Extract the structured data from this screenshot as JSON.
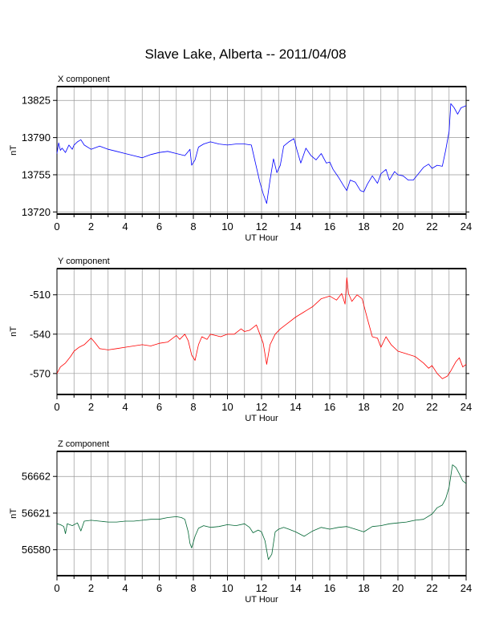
{
  "title": "Slave Lake, Alberta -- 2011/04/08",
  "chart_data": [
    {
      "type": "line",
      "title": "X component",
      "xlabel": "UT Hour",
      "ylabel": "nT",
      "xlim": [
        0,
        24
      ],
      "ylim": [
        13718,
        13838
      ],
      "yticks": [
        13720,
        13755,
        13790,
        13825
      ],
      "xticks": [
        0,
        2,
        4,
        6,
        8,
        10,
        12,
        14,
        16,
        18,
        20,
        22,
        24
      ],
      "color": "#0000ff",
      "grid": true,
      "series": [
        {
          "x": [
            0,
            0.1,
            0.2,
            0.3,
            0.5,
            0.7,
            0.9,
            1.0,
            1.2,
            1.4,
            1.6,
            2.0,
            2.5,
            3.0,
            3.5,
            4.0,
            4.5,
            5.0,
            5.5,
            6.0,
            6.5,
            7.0,
            7.5,
            7.8,
            7.9,
            8.1,
            8.3,
            8.6,
            9.0,
            9.5,
            10.0,
            10.5,
            11.0,
            11.4,
            11.6,
            11.9,
            12.1,
            12.3,
            12.5,
            12.7,
            12.9,
            13.1,
            13.3,
            13.6,
            13.9,
            14.1,
            14.3,
            14.6,
            14.9,
            15.2,
            15.5,
            15.8,
            16.0,
            16.2,
            16.5,
            16.8,
            17.0,
            17.2,
            17.5,
            17.8,
            18.0,
            18.2,
            18.5,
            18.8,
            19.0,
            19.3,
            19.5,
            19.8,
            20.0,
            20.3,
            20.6,
            20.9,
            21.2,
            21.5,
            21.8,
            22.0,
            22.3,
            22.6,
            22.8,
            23.0,
            23.1,
            23.3,
            23.5,
            23.7,
            24.0
          ],
          "y": [
            13775,
            13785,
            13778,
            13780,
            13776,
            13783,
            13779,
            13783,
            13786,
            13788,
            13783,
            13779,
            13782,
            13779,
            13777,
            13775,
            13773,
            13771,
            13774,
            13776,
            13777,
            13775,
            13773,
            13779,
            13764,
            13769,
            13781,
            13784,
            13786,
            13784,
            13783,
            13784,
            13784,
            13783,
            13769,
            13748,
            13737,
            13728,
            13750,
            13770,
            13757,
            13764,
            13782,
            13786,
            13789,
            13777,
            13766,
            13780,
            13773,
            13769,
            13775,
            13766,
            13767,
            13760,
            13753,
            13745,
            13740,
            13750,
            13748,
            13740,
            13739,
            13746,
            13754,
            13747,
            13756,
            13760,
            13750,
            13758,
            13755,
            13754,
            13750,
            13750,
            13756,
            13762,
            13765,
            13761,
            13764,
            13763,
            13778,
            13796,
            13822,
            13818,
            13812,
            13818,
            13820
          ]
        }
      ]
    },
    {
      "type": "line",
      "title": "Y component",
      "xlabel": "UT Hour",
      "ylabel": "nT",
      "xlim": [
        0,
        24
      ],
      "ylim": [
        -586,
        -490
      ],
      "yticks": [
        -570,
        -540,
        -510
      ],
      "xticks": [
        0,
        2,
        4,
        6,
        8,
        10,
        12,
        14,
        16,
        18,
        20,
        22,
        24
      ],
      "color": "#ff0000",
      "grid": true,
      "series": [
        {
          "x": [
            0,
            0.2,
            0.5,
            0.8,
            1.0,
            1.3,
            1.6,
            2.0,
            2.2,
            2.5,
            3.0,
            3.5,
            4.0,
            4.5,
            5.0,
            5.5,
            6.0,
            6.5,
            6.8,
            7.0,
            7.2,
            7.5,
            7.7,
            7.9,
            8.1,
            8.3,
            8.5,
            8.8,
            9.0,
            9.3,
            9.6,
            10.0,
            10.4,
            10.8,
            11.0,
            11.3,
            11.5,
            11.7,
            11.9,
            12.1,
            12.3,
            12.5,
            12.8,
            13.1,
            13.5,
            14.0,
            14.5,
            15.0,
            15.5,
            16.0,
            16.4,
            16.7,
            16.9,
            17.0,
            17.1,
            17.3,
            17.6,
            17.9,
            18.2,
            18.5,
            18.8,
            19.0,
            19.3,
            19.6,
            20.0,
            20.5,
            21.0,
            21.5,
            21.8,
            22.0,
            22.3,
            22.6,
            22.9,
            23.1,
            23.4,
            23.6,
            23.8,
            24.0
          ],
          "y": [
            -570,
            -565,
            -562,
            -557,
            -553,
            -550,
            -548,
            -543,
            -546,
            -551,
            -552,
            -551,
            -550,
            -549,
            -548,
            -549,
            -547,
            -546,
            -543,
            -541,
            -544,
            -540,
            -545,
            -556,
            -560,
            -548,
            -542,
            -544,
            -540,
            -541,
            -542,
            -540,
            -540,
            -536,
            -538,
            -537,
            -535,
            -533,
            -540,
            -547,
            -563,
            -548,
            -540,
            -536,
            -532,
            -527,
            -523,
            -519,
            -513,
            -511,
            -514,
            -509,
            -517,
            -497,
            -509,
            -515,
            -510,
            -513,
            -528,
            -542,
            -543,
            -550,
            -542,
            -548,
            -553,
            -555,
            -557,
            -562,
            -566,
            -564,
            -570,
            -574,
            -572,
            -568,
            -561,
            -558,
            -565,
            -563
          ]
        }
      ]
    },
    {
      "type": "line",
      "title": "Z component",
      "xlabel": "UT Hour",
      "ylabel": "nT",
      "xlim": [
        0,
        24
      ],
      "ylim": [
        56551,
        56690
      ],
      "yticks": [
        56580,
        56621,
        56662
      ],
      "xticks": [
        0,
        2,
        4,
        6,
        8,
        10,
        12,
        14,
        16,
        18,
        20,
        22,
        24
      ],
      "color": "#006633",
      "grid": true,
      "series": [
        {
          "x": [
            0,
            0.2,
            0.4,
            0.5,
            0.6,
            0.9,
            1.2,
            1.4,
            1.6,
            2.0,
            2.5,
            3.0,
            3.5,
            4.0,
            4.5,
            5.0,
            5.5,
            6.0,
            6.5,
            7.0,
            7.3,
            7.5,
            7.7,
            7.8,
            7.9,
            8.1,
            8.3,
            8.6,
            9.0,
            9.5,
            10.0,
            10.5,
            11.0,
            11.3,
            11.5,
            11.8,
            12.0,
            12.2,
            12.4,
            12.6,
            12.8,
            13.0,
            13.3,
            13.6,
            14.0,
            14.5,
            15.0,
            15.5,
            16.0,
            16.5,
            17.0,
            17.5,
            18.0,
            18.5,
            19.0,
            19.5,
            20.0,
            20.5,
            21.0,
            21.5,
            22.0,
            22.3,
            22.6,
            22.8,
            23.0,
            23.2,
            23.4,
            23.6,
            23.8,
            24.0
          ],
          "y": [
            56609,
            56608,
            56606,
            56598,
            56609,
            56607,
            56610,
            56601,
            56612,
            56613,
            56612,
            56611,
            56611,
            56612,
            56612,
            56613,
            56614,
            56614,
            56616,
            56617,
            56616,
            56614,
            56600,
            56587,
            56582,
            56595,
            56604,
            56607,
            56605,
            56606,
            56608,
            56607,
            56609,
            56605,
            56599,
            56602,
            56600,
            56590,
            56569,
            56575,
            56600,
            56603,
            56605,
            56603,
            56600,
            56595,
            56601,
            56605,
            56603,
            56605,
            56606,
            56603,
            56600,
            56606,
            56607,
            56609,
            56610,
            56611,
            56613,
            56614,
            56620,
            56627,
            56630,
            56637,
            56650,
            56675,
            56672,
            56665,
            56657,
            56654
          ]
        }
      ]
    }
  ]
}
